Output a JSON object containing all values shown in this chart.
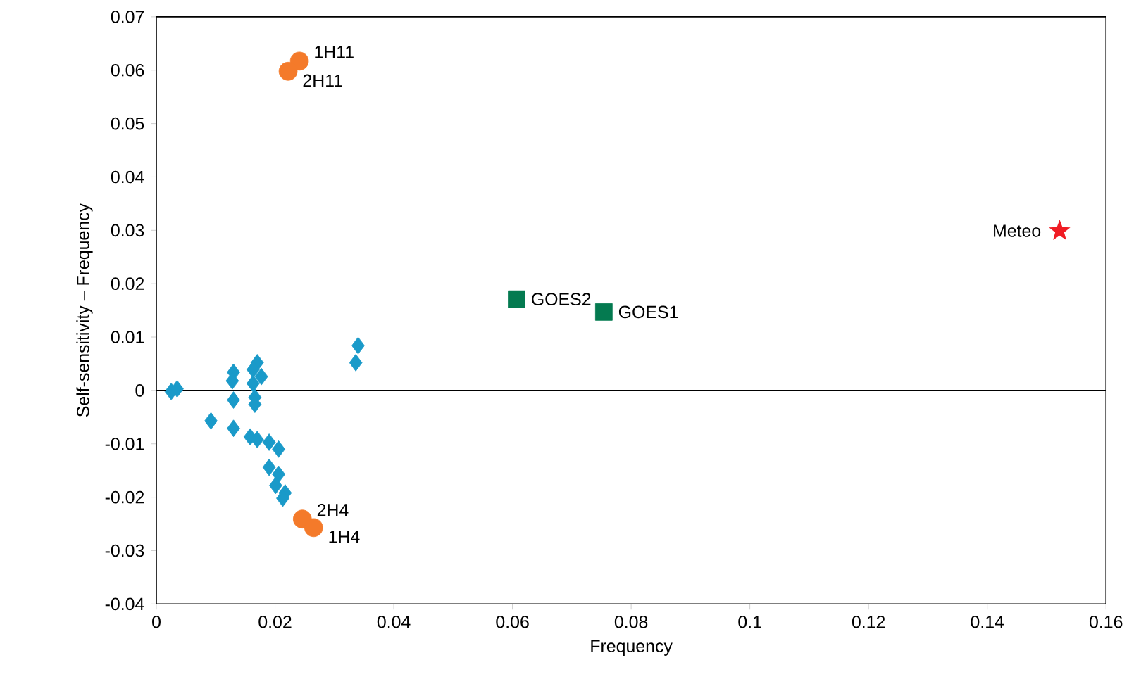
{
  "chart_data": {
    "type": "scatter",
    "xlabel": "Frequency",
    "ylabel": "Self-sensitivity – Frequency",
    "xlim": [
      0,
      0.16
    ],
    "ylim": [
      -0.04,
      0.07
    ],
    "xticks": [
      0,
      0.02,
      0.04,
      0.06,
      0.08,
      0.1,
      0.12,
      0.14,
      0.16
    ],
    "yticks": [
      -0.04,
      -0.03,
      -0.02,
      -0.01,
      0,
      0.01,
      0.02,
      0.03,
      0.04,
      0.05,
      0.06,
      0.07
    ],
    "ref_lines": [
      {
        "axis": "y",
        "value": 0,
        "color": "#000000"
      }
    ],
    "series": [
      {
        "color": "#1a9ac9",
        "marker": "diamond",
        "x": [
          0.0025,
          0.0035,
          0.013,
          0.0128,
          0.013,
          0.0092,
          0.013,
          0.017,
          0.0163,
          0.0177,
          0.0163,
          0.0166,
          0.0166,
          0.0158,
          0.017,
          0.019,
          0.0206,
          0.019,
          0.0206,
          0.0201,
          0.0217,
          0.0213,
          0.034,
          0.0336
        ],
        "values": [
          -0.0002,
          0.0003,
          0.0034,
          0.0018,
          -0.0018,
          -0.0057,
          -0.0071,
          0.0052,
          0.0039,
          0.0026,
          0.0013,
          -0.0013,
          -0.0026,
          -0.0087,
          -0.0092,
          -0.0097,
          -0.011,
          -0.0144,
          -0.0157,
          -0.0178,
          -0.0192,
          -0.0202,
          0.0084,
          0.0052
        ]
      },
      {
        "color": "#f47a2a",
        "marker": "circle",
        "x": [
          0.0241,
          0.0222,
          0.0246,
          0.0265
        ],
        "values": [
          0.0617,
          0.0598,
          -0.0241,
          -0.0257
        ]
      },
      {
        "color": "#047a50",
        "marker": "square",
        "x": [
          0.0607,
          0.0754
        ],
        "values": [
          0.0171,
          0.0147
        ]
      },
      {
        "color": "#f01c24",
        "marker": "star",
        "x": [
          0.1522
        ],
        "values": [
          0.0299
        ]
      }
    ],
    "annotations": [
      {
        "text": "1H11",
        "x": 0.0241,
        "y": 0.0617
      },
      {
        "text": "2H11",
        "x": 0.0222,
        "y": 0.0598
      },
      {
        "text": "GOES2",
        "x": 0.0607,
        "y": 0.0171
      },
      {
        "text": "GOES1",
        "x": 0.0754,
        "y": 0.0147
      },
      {
        "text": "Meteo",
        "x": 0.1522,
        "y": 0.0299
      },
      {
        "text": "2H4",
        "x": 0.0246,
        "y": -0.0241
      },
      {
        "text": "1H4",
        "x": 0.0265,
        "y": -0.0257
      }
    ]
  }
}
